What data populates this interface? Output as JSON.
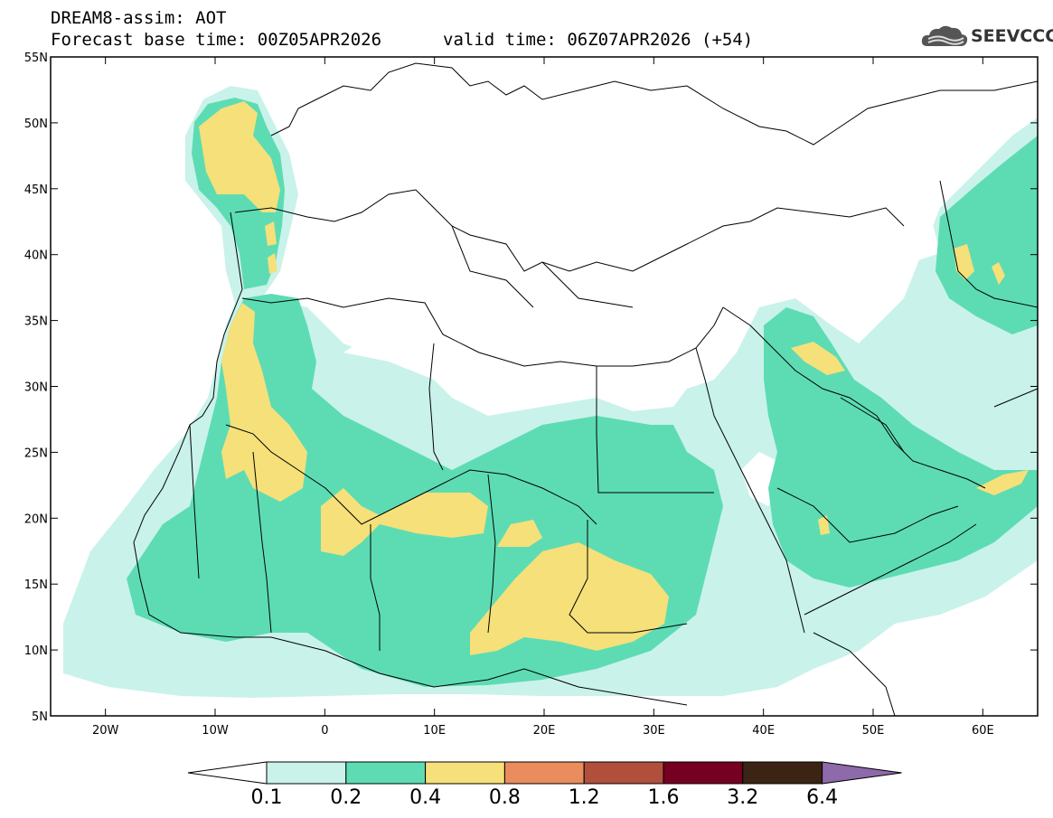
{
  "title": {
    "line1": "DREAM8-assim: AOT",
    "base": "Forecast base time: 00Z05APR2026",
    "valid": "valid time: 06Z07APR2026 (+54)"
  },
  "logo": {
    "text": "SEEVCCC",
    "icon": "cloud-icon"
  },
  "axes": {
    "lat_labels": [
      "55N",
      "50N",
      "45N",
      "40N",
      "35N",
      "30N",
      "25N",
      "20N",
      "15N",
      "10N",
      "5N"
    ],
    "lon_labels": [
      "20W",
      "10W",
      "0",
      "10E",
      "20E",
      "30E",
      "40E",
      "50E",
      "60E"
    ],
    "lon_range": [
      -25,
      65
    ],
    "lat_range": [
      5,
      55
    ]
  },
  "colorbar": {
    "labels": [
      "0.1",
      "0.2",
      "0.4",
      "0.8",
      "1.2",
      "1.6",
      "3.2",
      "6.4"
    ],
    "colors": [
      "#c9f2ea",
      "#5ddcb4",
      "#f6e07a",
      "#e98c5e",
      "#b0503c",
      "#760022",
      "#3c2414",
      "#8d6aaa"
    ]
  }
}
